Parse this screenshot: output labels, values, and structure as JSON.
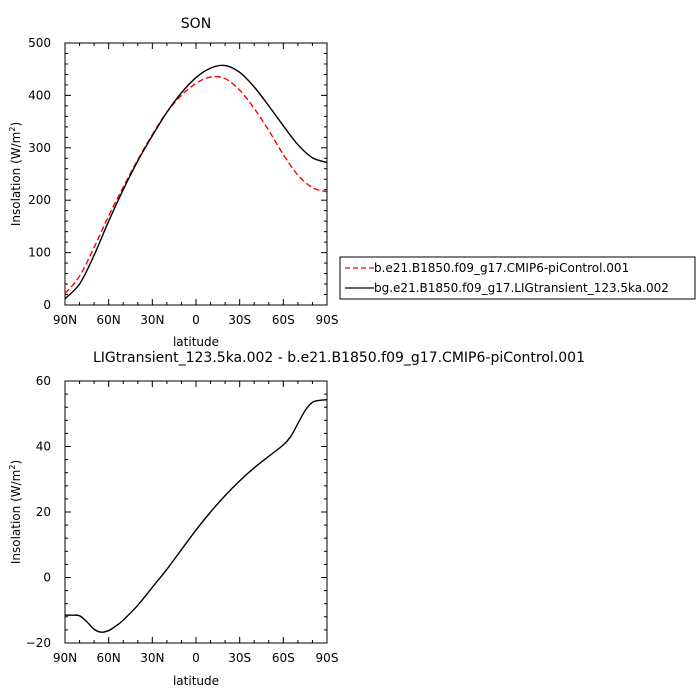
{
  "chart_data": [
    {
      "type": "line",
      "title": "SON",
      "xlabel": "latitude",
      "ylabel": "Insolation (W/m²)",
      "ylabel_main": "Insolation (W/m",
      "ylabel_sup": "2",
      "ylabel_close": ")",
      "x_tick_values": [
        90,
        60,
        30,
        0,
        -30,
        -60,
        -90
      ],
      "x_tick_labels": [
        "90N",
        "60N",
        "30N",
        "0",
        "30S",
        "60S",
        "90S"
      ],
      "xlim": [
        90,
        -90
      ],
      "ylim": [
        0,
        500
      ],
      "y_tick_values": [
        0,
        100,
        200,
        300,
        400,
        500
      ],
      "y_tick_labels": [
        "0",
        "100",
        "200",
        "300",
        "400",
        "500"
      ],
      "grid": false,
      "legend_position": "right",
      "series": [
        {
          "name": "b.e21.B1850.f09_g17.CMIP6-piControl.001",
          "color": "#ff0000",
          "dash": "dashed",
          "x": [
            90,
            80,
            70,
            60,
            50,
            40,
            30,
            20,
            10,
            0,
            -10,
            -20,
            -30,
            -40,
            -50,
            -60,
            -70,
            -80,
            -90
          ],
          "y": [
            22,
            55,
            110,
            170,
            225,
            277,
            325,
            368,
            400,
            423,
            435,
            432,
            410,
            375,
            333,
            287,
            248,
            224,
            216
          ]
        },
        {
          "name": "bg.e21.B1850.f09_g17.LIGtransient_123.5ka.002",
          "color": "#000000",
          "dash": "solid",
          "x": [
            90,
            80,
            70,
            60,
            50,
            40,
            30,
            20,
            10,
            0,
            -10,
            -20,
            -30,
            -40,
            -50,
            -60,
            -70,
            -80,
            -90
          ],
          "y": [
            12,
            40,
            95,
            160,
            220,
            275,
            323,
            368,
            405,
            434,
            452,
            457,
            444,
            416,
            380,
            342,
            306,
            281,
            272
          ]
        }
      ]
    },
    {
      "type": "line",
      "title": "LIGtransient_123.5ka.002 - b.e21.B1850.f09_g17.CMIP6-piControl.001",
      "xlabel": "latitude",
      "ylabel": "Insolation (W/m²)",
      "ylabel_main": "Insolation (W/m",
      "ylabel_sup": "2",
      "ylabel_close": ")",
      "x_tick_values": [
        90,
        60,
        30,
        0,
        -30,
        -60,
        -90
      ],
      "x_tick_labels": [
        "90N",
        "60N",
        "30N",
        "0",
        "30S",
        "60S",
        "90S"
      ],
      "xlim": [
        90,
        -90
      ],
      "ylim": [
        -20,
        60
      ],
      "y_tick_values": [
        -20,
        0,
        20,
        40,
        60
      ],
      "y_tick_labels": [
        "−20",
        "0",
        "20",
        "40",
        "60"
      ],
      "grid": false,
      "series": [
        {
          "color": "#000000",
          "dash": "solid",
          "x": [
            90,
            85,
            80,
            75,
            70,
            65,
            60,
            55,
            50,
            40,
            30,
            20,
            10,
            0,
            -10,
            -20,
            -30,
            -40,
            -50,
            -60,
            -65,
            -70,
            -75,
            -80,
            -85,
            -90
          ],
          "y": [
            -11.5,
            -11.5,
            -11.7,
            -13.5,
            -15.8,
            -16.7,
            -16.2,
            -14.8,
            -13.0,
            -8.5,
            -3.0,
            2.5,
            8.5,
            14.5,
            20.0,
            25.0,
            29.5,
            33.5,
            37.0,
            40.5,
            43.0,
            47.0,
            51.0,
            53.5,
            54.1,
            54.3
          ]
        }
      ]
    }
  ]
}
